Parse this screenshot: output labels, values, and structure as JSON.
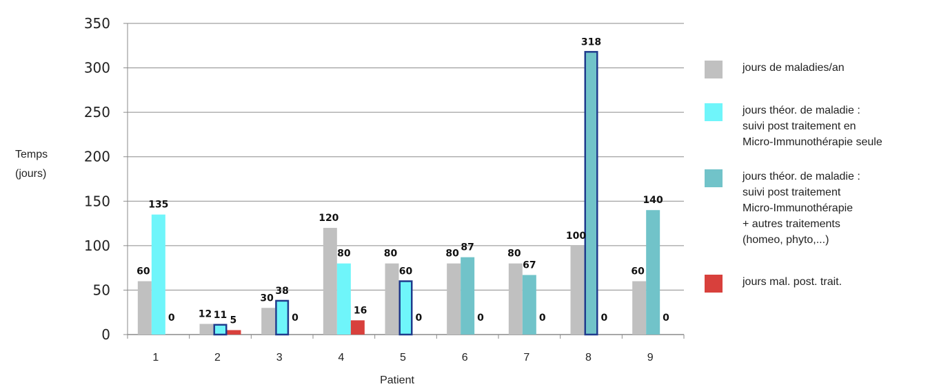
{
  "chart_data": {
    "type": "bar",
    "title": "",
    "xlabel": "Patient",
    "ylabel": [
      "Temps",
      "(jours)"
    ],
    "ylim": [
      0,
      350
    ],
    "yticks": [
      0,
      50,
      100,
      150,
      200,
      250,
      300,
      350
    ],
    "grid": true,
    "legend_position": "right",
    "categories": [
      "1",
      "2",
      "3",
      "4",
      "5",
      "6",
      "7",
      "8",
      "9"
    ],
    "series": [
      {
        "name": "jours de maladies/an",
        "legend_lines": [
          "jours de maladies/an"
        ],
        "color": "#c0c0c0",
        "values": [
          60,
          12,
          30,
          120,
          80,
          80,
          80,
          100,
          60
        ]
      },
      {
        "name": "jours théor. de maladie : suivi post traitement Micro-Immunothérapie",
        "legend_lines": [],
        "color": "#71c3c9",
        "values": [
          135,
          11,
          38,
          80,
          60,
          87,
          67,
          318,
          140
        ]
      },
      {
        "name": "jours mal. post. trait.",
        "legend_lines": [
          "jours mal. post. trait."
        ],
        "color": "#d8403c",
        "values": [
          0,
          5,
          0,
          16,
          0,
          0,
          0,
          0,
          0
        ]
      }
    ],
    "bar_styles": {
      "cyan": "#6ff5fa",
      "teal": "#71c3c9",
      "outline": "#1f3b8c"
    },
    "middle_bar_variant": [
      "cyan",
      "cyan-outline",
      "cyan-outline",
      "cyan",
      "cyan-outline",
      "teal",
      "teal",
      "teal-outline",
      "teal"
    ],
    "legend": [
      {
        "color": "#c0c0c0",
        "lines": [
          "jours de maladies/an"
        ]
      },
      {
        "color": "#6ff5fa",
        "lines": [
          "jours théor. de maladie :",
          "suivi post traitement en",
          "Micro-Immunothérapie seule"
        ]
      },
      {
        "color": "#71c3c9",
        "lines": [
          "jours théor. de maladie :",
          "suivi post traitement",
          "Micro-Immunothérapie",
          "+ autres traitements",
          "(homeo, phyto,...)"
        ]
      },
      {
        "color": "#d8403c",
        "lines": [
          "jours mal. post. trait."
        ]
      }
    ]
  }
}
